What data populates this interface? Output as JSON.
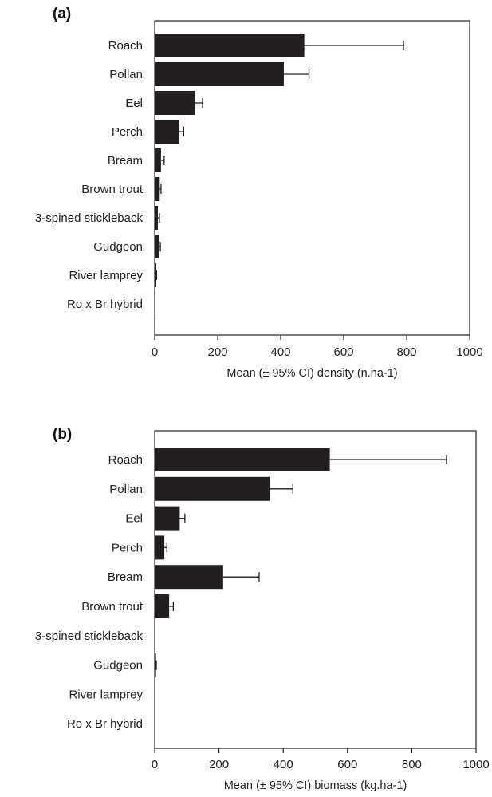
{
  "chart_data": [
    {
      "type": "bar",
      "orientation": "horizontal",
      "panel_label": "(a)",
      "categories": [
        "Roach",
        "Pollan",
        "Eel",
        "Perch",
        "Bream",
        "Brown trout",
        "3-spined stickleback",
        "Gudgeon",
        "River lamprey",
        "Ro x Br hybrid"
      ],
      "values": [
        475,
        410,
        128,
        78,
        20,
        16,
        10,
        15,
        5,
        2
      ],
      "ci_upper": [
        790,
        490,
        152,
        92,
        30,
        20,
        15,
        18,
        6,
        2
      ],
      "xlabel": "Mean (± 95% CI) density (n.ha-1)",
      "xlim": [
        0,
        1000
      ],
      "xticks": [
        0,
        200,
        400,
        600,
        800,
        1000
      ],
      "grid": false
    },
    {
      "type": "bar",
      "orientation": "horizontal",
      "panel_label": "(b)",
      "categories": [
        "Roach",
        "Pollan",
        "Eel",
        "Perch",
        "Bream",
        "Brown trout",
        "3-spined stickleback",
        "Gudgeon",
        "River lamprey",
        "Ro x Br hybrid"
      ],
      "values": [
        545,
        358,
        78,
        30,
        213,
        45,
        0,
        4,
        0,
        0
      ],
      "ci_upper": [
        908,
        430,
        94,
        38,
        325,
        58,
        0,
        5,
        0,
        0
      ],
      "xlabel": "Mean (± 95% CI) biomass (kg.ha-1)",
      "xlim": [
        0,
        1000
      ],
      "xticks": [
        0,
        200,
        400,
        600,
        800,
        1000
      ],
      "grid": false
    }
  ]
}
